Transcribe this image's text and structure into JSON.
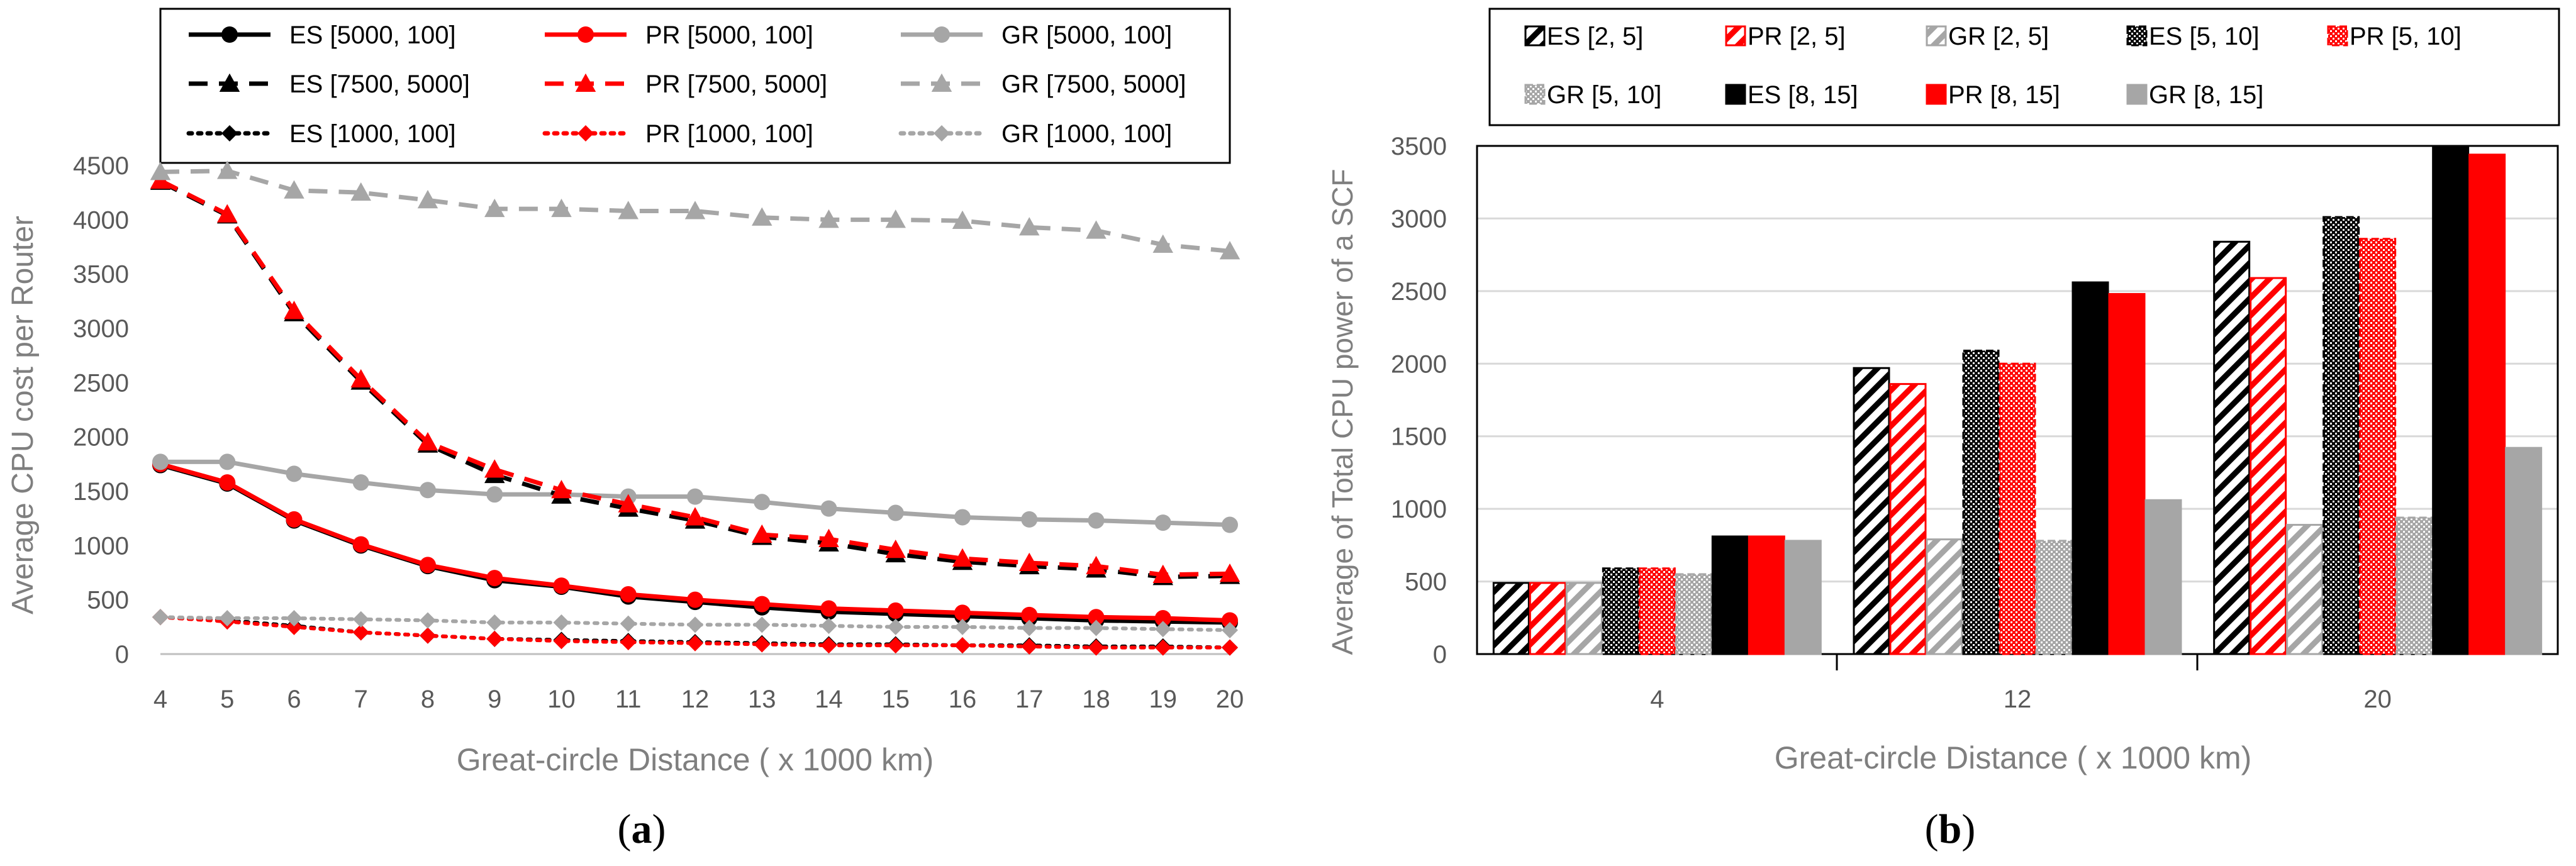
{
  "chart_data": [
    {
      "type": "line",
      "panel_label": "a",
      "xlabel": "Great-circle Distance ( x 1000 km)",
      "ylabel": "Average CPU cost per Router",
      "xlim": [
        4,
        20
      ],
      "ylim": [
        0,
        4500
      ],
      "yticks": [
        0,
        500,
        1000,
        1500,
        2000,
        2500,
        3000,
        3500,
        4000,
        4500
      ],
      "x": [
        4,
        5,
        6,
        7,
        8,
        9,
        10,
        11,
        12,
        13,
        14,
        15,
        16,
        17,
        18,
        19,
        20
      ],
      "grid": false,
      "legend_position": "top",
      "series": [
        {
          "name": "ES [5000, 100]",
          "color": "#000000",
          "dash": "solid",
          "marker": "circle",
          "values": [
            1740,
            1570,
            1230,
            1000,
            810,
            680,
            620,
            530,
            480,
            430,
            390,
            370,
            350,
            330,
            310,
            300,
            290
          ]
        },
        {
          "name": "PR [5000, 100]",
          "color": "#ff0000",
          "dash": "solid",
          "marker": "circle",
          "values": [
            1750,
            1580,
            1240,
            1010,
            820,
            700,
            630,
            550,
            500,
            460,
            420,
            400,
            380,
            360,
            340,
            330,
            310
          ]
        },
        {
          "name": "GR [5000, 100]",
          "color": "#a6a6a6",
          "dash": "solid",
          "marker": "circle",
          "values": [
            1770,
            1770,
            1660,
            1580,
            1510,
            1470,
            1470,
            1450,
            1450,
            1400,
            1340,
            1300,
            1260,
            1240,
            1230,
            1210,
            1190
          ]
        },
        {
          "name": "ES [7500, 5000]",
          "color": "#000000",
          "dash": "dashed",
          "marker": "triangle",
          "values": [
            4350,
            4040,
            3140,
            2510,
            1930,
            1650,
            1460,
            1340,
            1230,
            1080,
            1020,
            920,
            850,
            810,
            780,
            710,
            720
          ]
        },
        {
          "name": "PR [7500, 5000]",
          "color": "#ff0000",
          "dash": "dashed",
          "marker": "triangle",
          "values": [
            4360,
            4050,
            3160,
            2530,
            1950,
            1700,
            1510,
            1380,
            1260,
            1100,
            1060,
            960,
            880,
            840,
            810,
            730,
            740
          ]
        },
        {
          "name": "GR [7500, 5000]",
          "color": "#a6a6a6",
          "dash": "dashed",
          "marker": "triangle",
          "values": [
            4440,
            4450,
            4270,
            4250,
            4180,
            4100,
            4100,
            4080,
            4080,
            4020,
            4000,
            4000,
            3990,
            3930,
            3900,
            3770,
            3710
          ]
        },
        {
          "name": "ES [1000, 100]",
          "color": "#000000",
          "dash": "dotted",
          "marker": "diamond",
          "values": [
            340,
            310,
            260,
            200,
            170,
            140,
            130,
            120,
            110,
            100,
            90,
            90,
            80,
            80,
            70,
            70,
            60
          ]
        },
        {
          "name": "PR [1000, 100]",
          "color": "#ff0000",
          "dash": "dotted",
          "marker": "diamond",
          "values": [
            340,
            300,
            250,
            200,
            170,
            140,
            120,
            110,
            100,
            90,
            80,
            80,
            80,
            70,
            60,
            60,
            60
          ]
        },
        {
          "name": "GR [1000, 100]",
          "color": "#a6a6a6",
          "dash": "dotted",
          "marker": "diamond",
          "values": [
            340,
            330,
            330,
            320,
            310,
            290,
            290,
            280,
            270,
            270,
            260,
            250,
            250,
            240,
            240,
            230,
            220
          ]
        }
      ]
    },
    {
      "type": "bar",
      "panel_label": "b",
      "xlabel": "Great-circle Distance ( x 1000 km)",
      "ylabel": "Average of Total CPU power of a SCF",
      "categories": [
        "4",
        "12",
        "20"
      ],
      "ylim": [
        0,
        3500
      ],
      "yticks": [
        0,
        500,
        1000,
        1500,
        2000,
        2500,
        3000,
        3500
      ],
      "grid": true,
      "legend_position": "top",
      "series": [
        {
          "name": "ES [2, 5]",
          "color": "#000000",
          "pattern": "hatch",
          "values": [
            490,
            1970,
            2840
          ]
        },
        {
          "name": "PR [2, 5]",
          "color": "#ff0000",
          "pattern": "hatch",
          "values": [
            490,
            1860,
            2590
          ]
        },
        {
          "name": "GR [2, 5]",
          "color": "#a6a6a6",
          "pattern": "hatch",
          "values": [
            490,
            790,
            890
          ]
        },
        {
          "name": "ES [5, 10]",
          "color": "#000000",
          "pattern": "dots",
          "values": [
            590,
            2090,
            3010
          ]
        },
        {
          "name": "PR [5, 10]",
          "color": "#ff0000",
          "pattern": "dots",
          "values": [
            590,
            2000,
            2860
          ]
        },
        {
          "name": "GR [5, 10]",
          "color": "#a6a6a6",
          "pattern": "dots",
          "values": [
            550,
            780,
            940
          ]
        },
        {
          "name": "ES [8, 15]",
          "color": "#000000",
          "pattern": "solid",
          "values": [
            810,
            2560,
            3500
          ]
        },
        {
          "name": "PR [8, 15]",
          "color": "#ff0000",
          "pattern": "solid",
          "values": [
            810,
            2480,
            3440
          ]
        },
        {
          "name": "GR [8, 15]",
          "color": "#a6a6a6",
          "pattern": "solid",
          "values": [
            780,
            1060,
            1420
          ]
        }
      ]
    }
  ]
}
